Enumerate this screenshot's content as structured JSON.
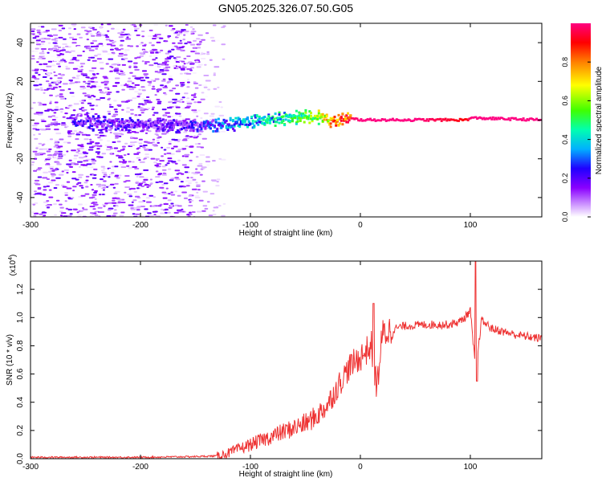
{
  "title": "GN05.2025.326.07.50.G05",
  "chart_data": [
    {
      "type": "heatmap",
      "title": "",
      "xlabel": "Height of straight line (km)",
      "ylabel": "Frequency (Hz)",
      "xlim": [
        -300,
        165
      ],
      "ylim": [
        -50,
        50
      ],
      "x_ticks": [
        -300,
        -200,
        -100,
        0,
        100
      ],
      "y_ticks": [
        -40,
        -20,
        0,
        20,
        40
      ],
      "colorbar": {
        "label": "Normalized spectral amplitude",
        "range": [
          0,
          1
        ],
        "ticks": [
          "0.0",
          "0.2",
          "0.4",
          "0.6",
          "0.8"
        ],
        "colormap": [
          "#ffffff",
          "#8a00ff",
          "#2000ff",
          "#00b0ff",
          "#00ffb0",
          "#40ff00",
          "#ffff00",
          "#ff8000",
          "#ff0000",
          "#ff0080"
        ]
      },
      "ridge": {
        "x": [
          -260,
          -230,
          -200,
          -170,
          -140,
          -120,
          -100,
          -80,
          -60,
          -45,
          -35,
          -25,
          -15,
          0,
          50,
          95,
          100,
          165
        ],
        "y": [
          -1,
          -2,
          -2,
          -3,
          -3,
          -2,
          -1,
          0,
          1,
          2,
          1,
          -1,
          1,
          0,
          0,
          0,
          1,
          0
        ],
        "amplitude": [
          0.25,
          0.25,
          0.22,
          0.22,
          0.3,
          0.4,
          0.45,
          0.5,
          0.55,
          0.65,
          0.75,
          0.9,
          0.95,
          1.0,
          1.0,
          0.9,
          1.0,
          1.0
        ]
      },
      "noise_region": {
        "x_range": [
          -300,
          -125
        ],
        "y_range": [
          -50,
          50
        ],
        "amplitude_range": [
          0.0,
          0.2
        ]
      }
    },
    {
      "type": "line",
      "title": "",
      "xlabel": "Height of straight line (km)",
      "ylabel": "SNR (10 * v/v)",
      "y_scale_label": "(x10",
      "y_scale_exponent": "4",
      "xlim": [
        -300,
        165
      ],
      "ylim": [
        0,
        1.4
      ],
      "x_ticks": [
        -300,
        -200,
        -100,
        0,
        100
      ],
      "y_ticks": [
        "0.0",
        "0.2",
        "0.4",
        "0.6",
        "0.8",
        "1.0",
        "1.2"
      ],
      "line_color": "#ee3333",
      "series": [
        {
          "x": [
            -300,
            -250,
            -200,
            -150,
            -130,
            -120,
            -110,
            -100,
            -90,
            -80,
            -70,
            -60,
            -50,
            -40,
            -30,
            -20,
            -10,
            0,
            10,
            15,
            20,
            30,
            40,
            60,
            80,
            90,
            95,
            100,
            105,
            110,
            120,
            140,
            165
          ],
          "values": [
            0.01,
            0.01,
            0.01,
            0.015,
            0.02,
            0.04,
            0.07,
            0.1,
            0.13,
            0.16,
            0.19,
            0.22,
            0.25,
            0.3,
            0.38,
            0.52,
            0.65,
            0.72,
            0.8,
            0.5,
            0.88,
            0.92,
            0.94,
            0.95,
            0.95,
            0.97,
            1.0,
            1.05,
            0.6,
            0.98,
            0.92,
            0.88,
            0.85
          ]
        }
      ]
    }
  ]
}
